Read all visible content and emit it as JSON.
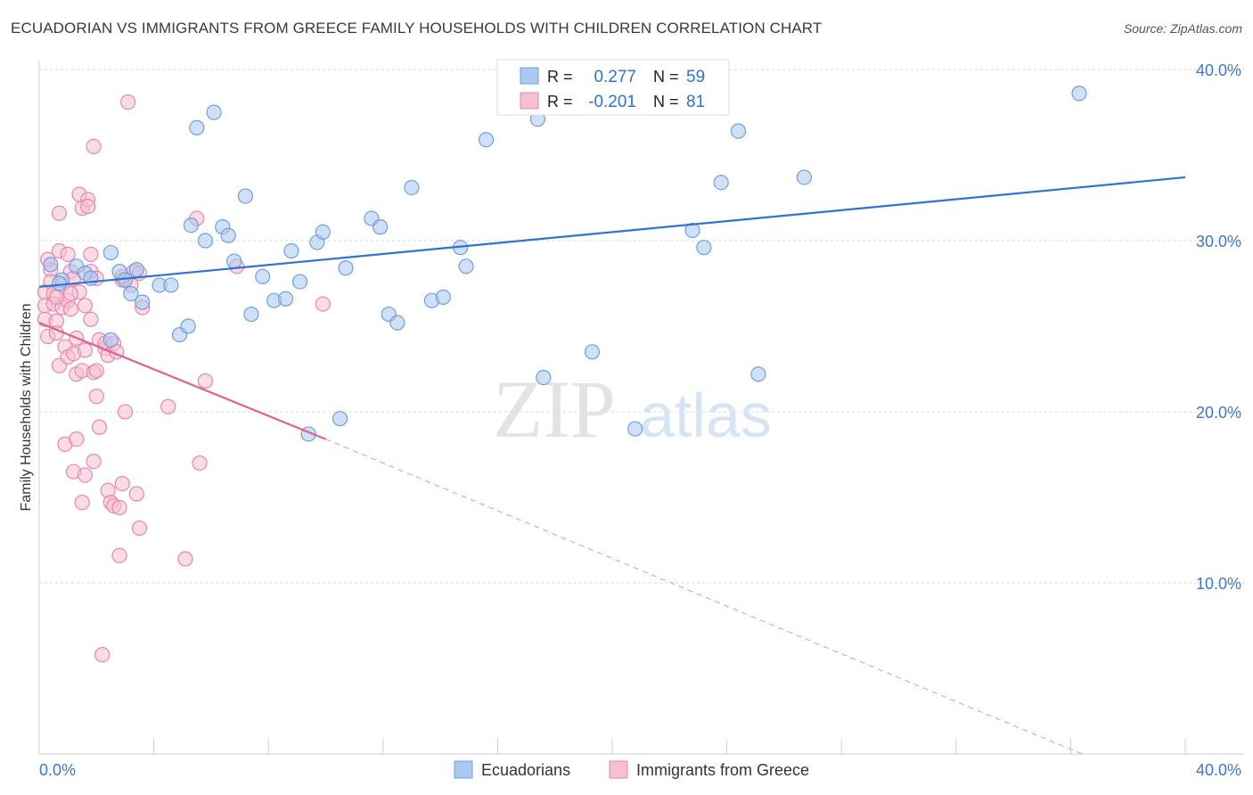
{
  "title": "ECUADORIAN VS IMMIGRANTS FROM GREECE FAMILY HOUSEHOLDS WITH CHILDREN CORRELATION CHART",
  "source": "Source: ZipAtlas.com",
  "watermark": {
    "zip": "ZIP",
    "atlas": "atlas"
  },
  "colors": {
    "blue": "#6f9fe0",
    "blue_fill": "#aac8f0",
    "blue_line": "#2f72d0",
    "pink": "#ea86a8",
    "pink_fill": "#f6bfd2",
    "pink_line": "#e0608f",
    "axis_text": "#3a78d0",
    "grid": "#d8d8d8"
  },
  "legend": {
    "r_label": "R =",
    "n_label": "N =",
    "rows": [
      {
        "r": "0.277",
        "n": "59"
      },
      {
        "r": "-0.201",
        "n": "81"
      }
    ]
  },
  "chart_data": {
    "type": "scatter",
    "xlabel": "",
    "ylabel": "Family Households with Children",
    "xlim": [
      0,
      40
    ],
    "ylim": [
      0,
      40
    ],
    "x_tick_labels": [
      "0.0%",
      "40.0%"
    ],
    "y_ticks": [
      10,
      20,
      30,
      40
    ],
    "y_tick_labels": [
      "10.0%",
      "20.0%",
      "30.0%",
      "40.0%"
    ],
    "grid": true,
    "legend_position": "top-center",
    "series": [
      {
        "name": "Ecuadorians",
        "color": "#6f9fe0",
        "trend": {
          "x0": 0,
          "y0": 27.3,
          "x1": 40,
          "y1": 33.7
        },
        "points": [
          [
            0.4,
            28.6
          ],
          [
            0.8,
            27.7
          ],
          [
            1.3,
            28.5
          ],
          [
            1.6,
            28.1
          ],
          [
            2.5,
            24.2
          ],
          [
            2.5,
            29.3
          ],
          [
            2.8,
            28.2
          ],
          [
            3.2,
            26.9
          ],
          [
            3.4,
            28.3
          ],
          [
            3.0,
            27.7
          ],
          [
            4.2,
            27.4
          ],
          [
            4.6,
            27.4
          ],
          [
            4.9,
            24.5
          ],
          [
            5.2,
            25.0
          ],
          [
            5.3,
            30.9
          ],
          [
            5.5,
            36.6
          ],
          [
            5.8,
            30.0
          ],
          [
            6.1,
            37.5
          ],
          [
            6.4,
            30.8
          ],
          [
            6.6,
            30.3
          ],
          [
            6.8,
            28.8
          ],
          [
            7.2,
            32.6
          ],
          [
            7.4,
            25.7
          ],
          [
            7.8,
            27.9
          ],
          [
            8.2,
            26.5
          ],
          [
            8.6,
            26.6
          ],
          [
            8.8,
            29.4
          ],
          [
            9.1,
            27.6
          ],
          [
            9.4,
            18.7
          ],
          [
            9.7,
            29.9
          ],
          [
            9.9,
            30.5
          ],
          [
            10.5,
            19.6
          ],
          [
            10.7,
            28.4
          ],
          [
            11.6,
            31.3
          ],
          [
            11.9,
            30.8
          ],
          [
            12.2,
            25.7
          ],
          [
            12.5,
            25.2
          ],
          [
            13.0,
            33.1
          ],
          [
            13.7,
            26.5
          ],
          [
            14.1,
            26.7
          ],
          [
            14.7,
            29.6
          ],
          [
            14.9,
            28.5
          ],
          [
            15.6,
            35.9
          ],
          [
            17.4,
            37.1
          ],
          [
            17.6,
            22.0
          ],
          [
            18.7,
            38.3
          ],
          [
            19.3,
            23.5
          ],
          [
            20.8,
            19.0
          ],
          [
            22.3,
            38.2
          ],
          [
            22.8,
            30.6
          ],
          [
            23.2,
            29.6
          ],
          [
            23.8,
            33.4
          ],
          [
            24.4,
            36.4
          ],
          [
            25.1,
            22.2
          ],
          [
            26.7,
            33.7
          ],
          [
            36.3,
            38.6
          ],
          [
            0.7,
            27.5
          ],
          [
            1.8,
            27.8
          ],
          [
            3.6,
            26.4
          ]
        ]
      },
      {
        "name": "Immigrants from Greece",
        "color": "#ea86a8",
        "trend": {
          "x0": 0,
          "y0": 25.2,
          "x1": 10.0,
          "y1": 18.4
        },
        "trend_dashed": {
          "x0": 10.0,
          "y0": 18.4,
          "x1": 36.4,
          "y1": 0
        },
        "points": [
          [
            0.2,
            27.0
          ],
          [
            0.2,
            26.2
          ],
          [
            0.2,
            25.4
          ],
          [
            0.3,
            24.4
          ],
          [
            0.4,
            28.3
          ],
          [
            0.4,
            27.6
          ],
          [
            0.5,
            26.9
          ],
          [
            0.5,
            26.3
          ],
          [
            0.6,
            25.3
          ],
          [
            0.6,
            24.6
          ],
          [
            0.7,
            29.4
          ],
          [
            0.7,
            22.7
          ],
          [
            0.7,
            31.6
          ],
          [
            0.8,
            27.4
          ],
          [
            0.8,
            26.1
          ],
          [
            0.9,
            23.8
          ],
          [
            0.9,
            18.1
          ],
          [
            1.0,
            29.2
          ],
          [
            1.0,
            26.5
          ],
          [
            1.0,
            23.2
          ],
          [
            1.1,
            28.2
          ],
          [
            1.1,
            26.0
          ],
          [
            1.2,
            27.8
          ],
          [
            1.2,
            23.4
          ],
          [
            1.2,
            16.5
          ],
          [
            1.3,
            24.3
          ],
          [
            1.3,
            22.2
          ],
          [
            1.3,
            18.4
          ],
          [
            1.4,
            32.7
          ],
          [
            1.4,
            27.0
          ],
          [
            1.5,
            22.4
          ],
          [
            1.5,
            14.7
          ],
          [
            1.5,
            31.9
          ],
          [
            1.6,
            26.2
          ],
          [
            1.6,
            23.6
          ],
          [
            1.6,
            16.3
          ],
          [
            1.7,
            32.4
          ],
          [
            1.7,
            32.0
          ],
          [
            1.8,
            28.2
          ],
          [
            1.8,
            29.2
          ],
          [
            1.8,
            25.4
          ],
          [
            1.9,
            35.5
          ],
          [
            1.9,
            22.3
          ],
          [
            1.9,
            17.1
          ],
          [
            2.0,
            27.8
          ],
          [
            2.0,
            22.4
          ],
          [
            2.0,
            20.9
          ],
          [
            2.1,
            19.1
          ],
          [
            2.1,
            24.2
          ],
          [
            2.2,
            5.8
          ],
          [
            2.3,
            23.7
          ],
          [
            2.3,
            24.0
          ],
          [
            2.4,
            23.3
          ],
          [
            2.4,
            15.4
          ],
          [
            2.5,
            14.7
          ],
          [
            2.6,
            14.5
          ],
          [
            2.6,
            24.0
          ],
          [
            2.7,
            23.5
          ],
          [
            2.8,
            11.6
          ],
          [
            2.8,
            14.4
          ],
          [
            2.9,
            27.7
          ],
          [
            2.9,
            15.8
          ],
          [
            3.0,
            20.0
          ],
          [
            3.1,
            38.1
          ],
          [
            3.2,
            27.4
          ],
          [
            3.3,
            28.2
          ],
          [
            3.4,
            15.2
          ],
          [
            3.5,
            13.2
          ],
          [
            3.6,
            26.1
          ],
          [
            4.5,
            20.3
          ],
          [
            5.1,
            11.4
          ],
          [
            5.5,
            31.3
          ],
          [
            5.6,
            17.0
          ],
          [
            5.8,
            21.8
          ],
          [
            6.9,
            28.5
          ],
          [
            9.9,
            26.3
          ],
          [
            0.6,
            26.7
          ],
          [
            1.1,
            26.9
          ],
          [
            2.9,
            27.9
          ],
          [
            3.5,
            28.1
          ],
          [
            0.3,
            28.9
          ]
        ]
      }
    ]
  }
}
